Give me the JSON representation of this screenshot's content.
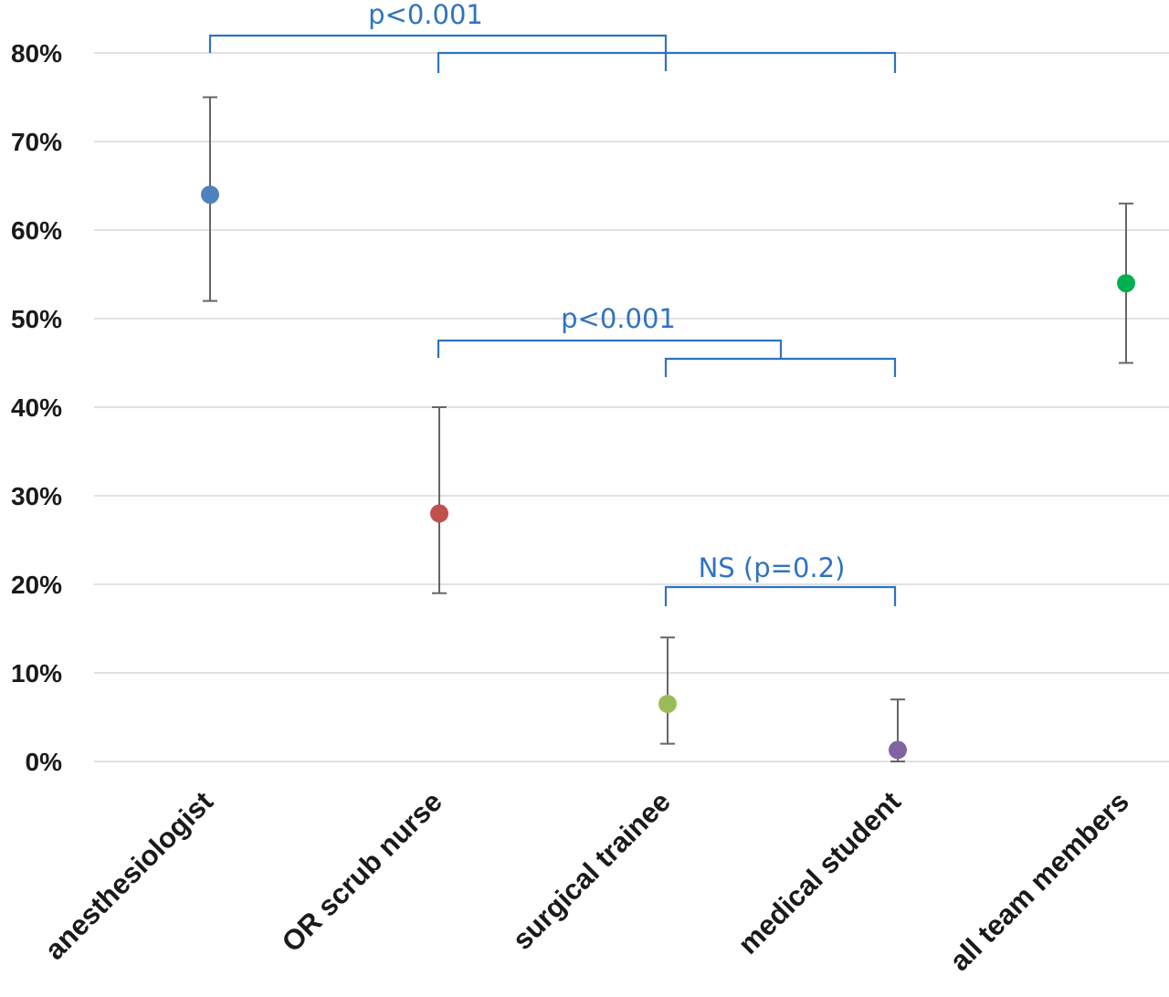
{
  "chart_data": {
    "type": "scatter",
    "categories": [
      "anesthesiologist",
      "OR scrub nurse",
      "surgical trainee",
      "medical student",
      "all team members"
    ],
    "points": [
      {
        "category": "anesthesiologist",
        "value": 64,
        "lower": 52,
        "upper": 75,
        "color": "#4f81bd"
      },
      {
        "category": "OR scrub nurse",
        "value": 28,
        "lower": 19,
        "upper": 40,
        "color": "#c0504d"
      },
      {
        "category": "surgical trainee",
        "value": 6.5,
        "lower": 2,
        "upper": 14,
        "color": "#9bbb59"
      },
      {
        "category": "medical student",
        "value": 1.3,
        "lower": 0,
        "upper": 7,
        "color": "#8064a2"
      },
      {
        "category": "all team members",
        "value": 54,
        "lower": 45,
        "upper": 63,
        "color": "#00b050"
      }
    ],
    "ylim": [
      0,
      80
    ],
    "yticks": [
      0,
      10,
      20,
      30,
      40,
      50,
      60,
      70,
      80
    ],
    "ytick_labels": [
      "0%",
      "10%",
      "20%",
      "30%",
      "40%",
      "50%",
      "60%",
      "70%",
      "80%"
    ],
    "grid": true,
    "title": "",
    "xlabel": "",
    "ylabel": "",
    "annotations": [
      {
        "text": "p<0.001",
        "from": "anesthesiologist",
        "to": "OR scrub nurse, surgical trainee, medical student"
      },
      {
        "text": "p<0.001",
        "from": "OR scrub nurse",
        "to": "surgical trainee, medical student"
      },
      {
        "text": "NS (p=0.2)",
        "from": "surgical trainee",
        "to": "medical student"
      }
    ]
  }
}
